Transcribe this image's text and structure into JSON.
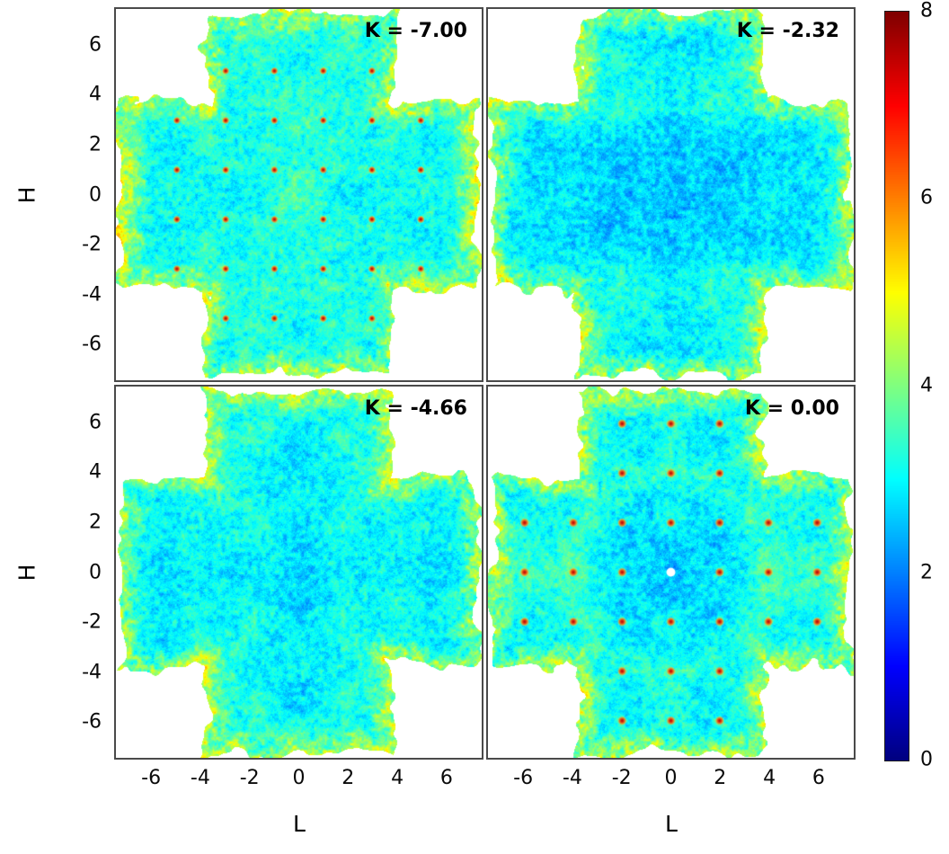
{
  "chart_data": {
    "type": "heatmap",
    "layout": "2x2 panel grid with shared axes and a jet colorbar on the right",
    "xlabel": "L",
    "ylabel": "H",
    "xlim": [
      -7.5,
      7.5
    ],
    "ylim": [
      -7.5,
      7.5
    ],
    "x_ticks": [
      -6,
      -4,
      -2,
      0,
      2,
      4,
      6
    ],
    "y_ticks": [
      6,
      4,
      2,
      0,
      -2,
      -4,
      -6
    ],
    "colorbar": {
      "min": 0,
      "max": 8,
      "ticks": [
        8,
        6,
        4,
        2,
        0
      ],
      "colormap": "jet"
    },
    "data_region": "cross/plus-shaped mask: pixels with |H| < ~3.8 or |L| < ~3.8, extent about ±7.3; white outside",
    "field_description": "speckled diffuse-scattering intensity mostly 2.8-4.2 (cyan-green), yellow-orange fringe along mask edges",
    "panels": [
      {
        "label": "K = -7.00",
        "row": 0,
        "col": 0,
        "bragg_peaks": "sharp red spots on odd-integer (L,H) grid",
        "seed": 11,
        "peaks": "odd",
        "adjust": "flat",
        "peak_radius": 4.5
      },
      {
        "label": "K = -2.32",
        "row": 0,
        "col": 1,
        "bragg_peaks": "none",
        "seed": 23,
        "peaks": "none",
        "adjust": "center-dip-diamond"
      },
      {
        "label": "K = -4.66",
        "row": 1,
        "col": 0,
        "bragg_peaks": "none",
        "seed": 37,
        "peaks": "none",
        "adjust": "center-dip-round"
      },
      {
        "label": "K = 0.00",
        "row": 1,
        "col": 1,
        "bragg_peaks": "sharp red spots on even-integer (L,H) grid, white dot at origin",
        "seed": 51,
        "peaks": "even",
        "adjust": "center-dip-ring",
        "peak_radius": 5.5,
        "center_white_dot": true
      }
    ]
  }
}
